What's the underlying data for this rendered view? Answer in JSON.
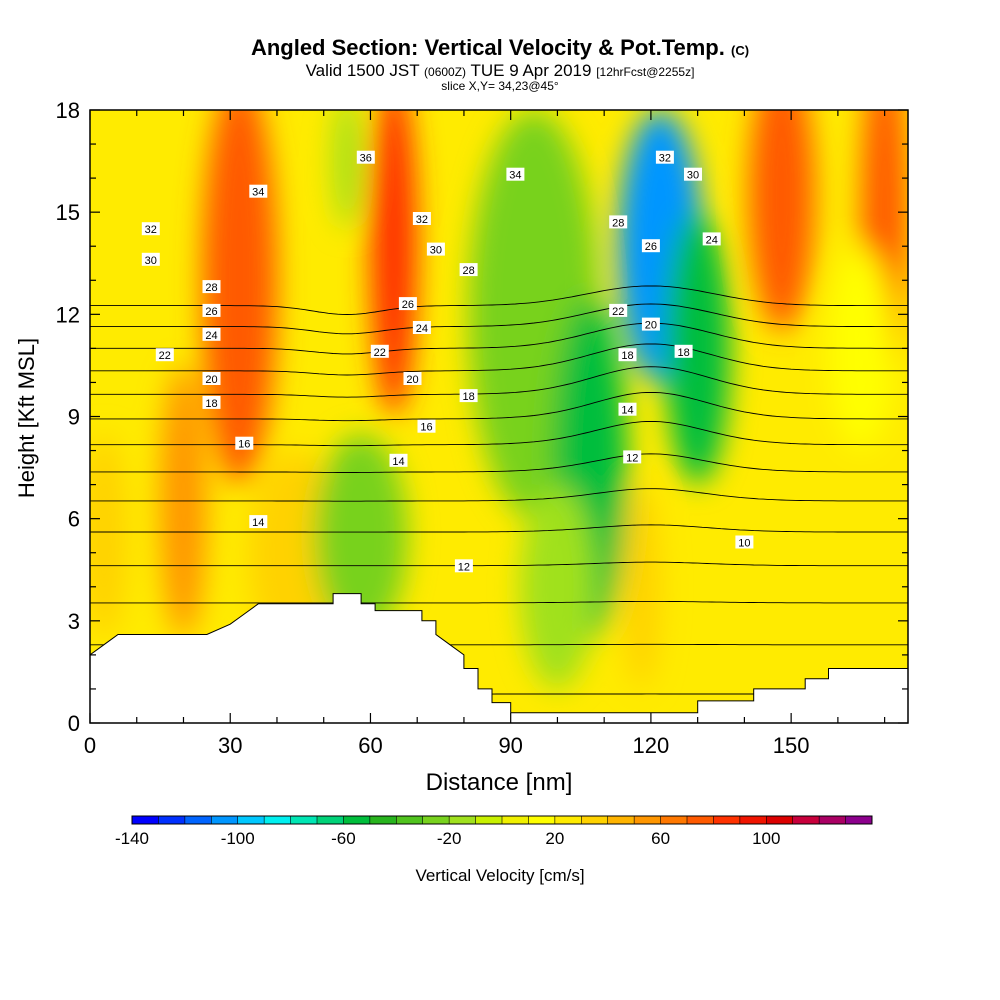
{
  "title": {
    "main": "Angled Section: Vertical Velocity & Pot.Temp.",
    "main_unit": "(C)",
    "valid_prefix": "Valid 1500 JST",
    "valid_utc": "(0600Z)",
    "valid_date": "TUE 9 Apr 2019",
    "forecast": "[12hrFcst@2255z]",
    "slice": "slice X,Y= 34,23@45°"
  },
  "chart_data": {
    "type": "heatmap",
    "xlabel": "Distance [nm]",
    "ylabel": "Height [Kft MSL]",
    "xlim": [
      0,
      175
    ],
    "ylim": [
      0,
      18
    ],
    "x_ticks": [
      0,
      30,
      60,
      90,
      120,
      150
    ],
    "y_ticks": [
      0,
      3,
      6,
      9,
      12,
      15,
      18
    ],
    "fill_field": "Vertical Velocity [cm/s]",
    "contour_field": "Pot.Temp. (C)",
    "colorbar": {
      "label": "Vertical Velocity [cm/s]",
      "range": [
        -140,
        140
      ],
      "step": 10,
      "tick_values": [
        -140,
        -100,
        -60,
        -20,
        20,
        60,
        100
      ],
      "colors": [
        "#0000ff",
        "#0030ff",
        "#0064ff",
        "#0096ff",
        "#00c8ff",
        "#00f0f0",
        "#00e6b4",
        "#00d278",
        "#00be3c",
        "#28b41e",
        "#50c31e",
        "#78d21e",
        "#a0e11e",
        "#c8f000",
        "#f0f000",
        "#ffff00",
        "#ffeb00",
        "#ffd200",
        "#ffb400",
        "#ff9600",
        "#ff7800",
        "#ff5a00",
        "#ff3200",
        "#f01400",
        "#dc0000",
        "#c8003c",
        "#aa0064",
        "#8c008c"
      ]
    },
    "velocity_cells": [
      {
        "x": 3,
        "z": 5.5,
        "w": 5,
        "h": 3,
        "v": 35
      },
      {
        "x": 20,
        "z": 6.5,
        "w": 5,
        "h": 4,
        "v": 55
      },
      {
        "x": 32,
        "z": 13.0,
        "w": 8,
        "h": 6,
        "v": 70
      },
      {
        "x": 44,
        "z": 5.0,
        "w": 10,
        "h": 3,
        "v": 35
      },
      {
        "x": 55,
        "z": 16.5,
        "w": 3,
        "h": 2,
        "v": -15
      },
      {
        "x": 65,
        "z": 14.0,
        "w": 5,
        "h": 5,
        "v": 80
      },
      {
        "x": 58,
        "z": 5.5,
        "w": 10,
        "h": 3,
        "v": -30
      },
      {
        "x": 95,
        "z": 12.0,
        "w": 14,
        "h": 6,
        "v": -30
      },
      {
        "x": 107,
        "z": 7.5,
        "w": 8,
        "h": 5,
        "v": -55
      },
      {
        "x": 122,
        "z": 14.0,
        "w": 9,
        "h": 4,
        "v": -110
      },
      {
        "x": 130,
        "z": 11.0,
        "w": 7,
        "h": 4,
        "v": -60
      },
      {
        "x": 118,
        "z": 4.0,
        "w": 4,
        "h": 3,
        "v": 35
      },
      {
        "x": 100,
        "z": 4.0,
        "w": 8,
        "h": 3,
        "v": -20
      },
      {
        "x": 148,
        "z": 15.5,
        "w": 7,
        "h": 4,
        "v": 70
      },
      {
        "x": 170,
        "z": 15.0,
        "w": 5,
        "h": 5,
        "v": 70
      },
      {
        "x": 165,
        "z": 11.0,
        "w": 7,
        "h": 3,
        "v": 15
      }
    ],
    "velocity_background": 25,
    "terrain": [
      [
        0,
        2.0
      ],
      [
        3,
        2.3
      ],
      [
        6,
        2.6
      ],
      [
        25,
        2.6
      ],
      [
        30,
        2.9
      ],
      [
        33,
        3.2
      ],
      [
        36,
        3.5
      ],
      [
        52,
        3.5
      ],
      [
        52,
        3.8
      ],
      [
        58,
        3.8
      ],
      [
        58,
        3.5
      ],
      [
        61,
        3.5
      ],
      [
        61,
        3.3
      ],
      [
        71,
        3.3
      ],
      [
        71,
        3.0
      ],
      [
        74,
        3.0
      ],
      [
        74,
        2.6
      ],
      [
        77,
        2.3
      ],
      [
        80,
        2.0
      ],
      [
        80,
        1.6
      ],
      [
        83,
        1.6
      ],
      [
        83,
        1.0
      ],
      [
        86,
        1.0
      ],
      [
        86,
        0.6
      ],
      [
        90,
        0.6
      ],
      [
        90,
        0.3
      ],
      [
        130,
        0.3
      ],
      [
        130,
        0.65
      ],
      [
        142,
        0.65
      ],
      [
        142,
        1.0
      ],
      [
        153,
        1.0
      ],
      [
        153,
        1.3
      ],
      [
        158,
        1.3
      ],
      [
        158,
        1.6
      ],
      [
        175,
        1.6
      ]
    ],
    "theta_levels": [
      10,
      12,
      14,
      16,
      18,
      20,
      22,
      24,
      26,
      28,
      30,
      32,
      34,
      36
    ],
    "contour_labels": [
      {
        "text": "36",
        "x": 59.0,
        "z": 16.6
      },
      {
        "text": "34",
        "x": 36.0,
        "z": 15.6
      },
      {
        "text": "34",
        "x": 91.0,
        "z": 16.1
      },
      {
        "text": "32",
        "x": 13.0,
        "z": 14.5
      },
      {
        "text": "32",
        "x": 71.0,
        "z": 14.8
      },
      {
        "text": "32",
        "x": 123.0,
        "z": 16.6
      },
      {
        "text": "30",
        "x": 13.0,
        "z": 13.6
      },
      {
        "text": "30",
        "x": 74.0,
        "z": 13.9
      },
      {
        "text": "30",
        "x": 129.0,
        "z": 16.1
      },
      {
        "text": "28",
        "x": 26.0,
        "z": 12.8
      },
      {
        "text": "28",
        "x": 81.0,
        "z": 13.3
      },
      {
        "text": "28",
        "x": 113.0,
        "z": 14.7
      },
      {
        "text": "26",
        "x": 26.0,
        "z": 12.1
      },
      {
        "text": "26",
        "x": 68.0,
        "z": 12.3
      },
      {
        "text": "26",
        "x": 120.0,
        "z": 14.0
      },
      {
        "text": "24",
        "x": 26.0,
        "z": 11.4
      },
      {
        "text": "24",
        "x": 71.0,
        "z": 11.6
      },
      {
        "text": "24",
        "x": 133.0,
        "z": 14.2
      },
      {
        "text": "22",
        "x": 16.0,
        "z": 10.8
      },
      {
        "text": "22",
        "x": 62.0,
        "z": 10.9
      },
      {
        "text": "22",
        "x": 113.0,
        "z": 12.1
      },
      {
        "text": "20",
        "x": 26.0,
        "z": 10.1
      },
      {
        "text": "20",
        "x": 69.0,
        "z": 10.1
      },
      {
        "text": "20",
        "x": 120.0,
        "z": 11.7
      },
      {
        "text": "18",
        "x": 26.0,
        "z": 9.4
      },
      {
        "text": "18",
        "x": 81.0,
        "z": 9.6
      },
      {
        "text": "18",
        "x": 115.0,
        "z": 10.8
      },
      {
        "text": "18",
        "x": 127.0,
        "z": 10.9
      },
      {
        "text": "16",
        "x": 72.0,
        "z": 8.7
      },
      {
        "text": "16",
        "x": 33.0,
        "z": 8.2
      },
      {
        "text": "14",
        "x": 115.0,
        "z": 9.2
      },
      {
        "text": "14",
        "x": 66.0,
        "z": 7.7
      },
      {
        "text": "14",
        "x": 36.0,
        "z": 5.9
      },
      {
        "text": "12",
        "x": 116.0,
        "z": 7.8
      },
      {
        "text": "12",
        "x": 80.0,
        "z": 4.6
      },
      {
        "text": "10",
        "x": 140.0,
        "z": 5.3
      }
    ]
  }
}
